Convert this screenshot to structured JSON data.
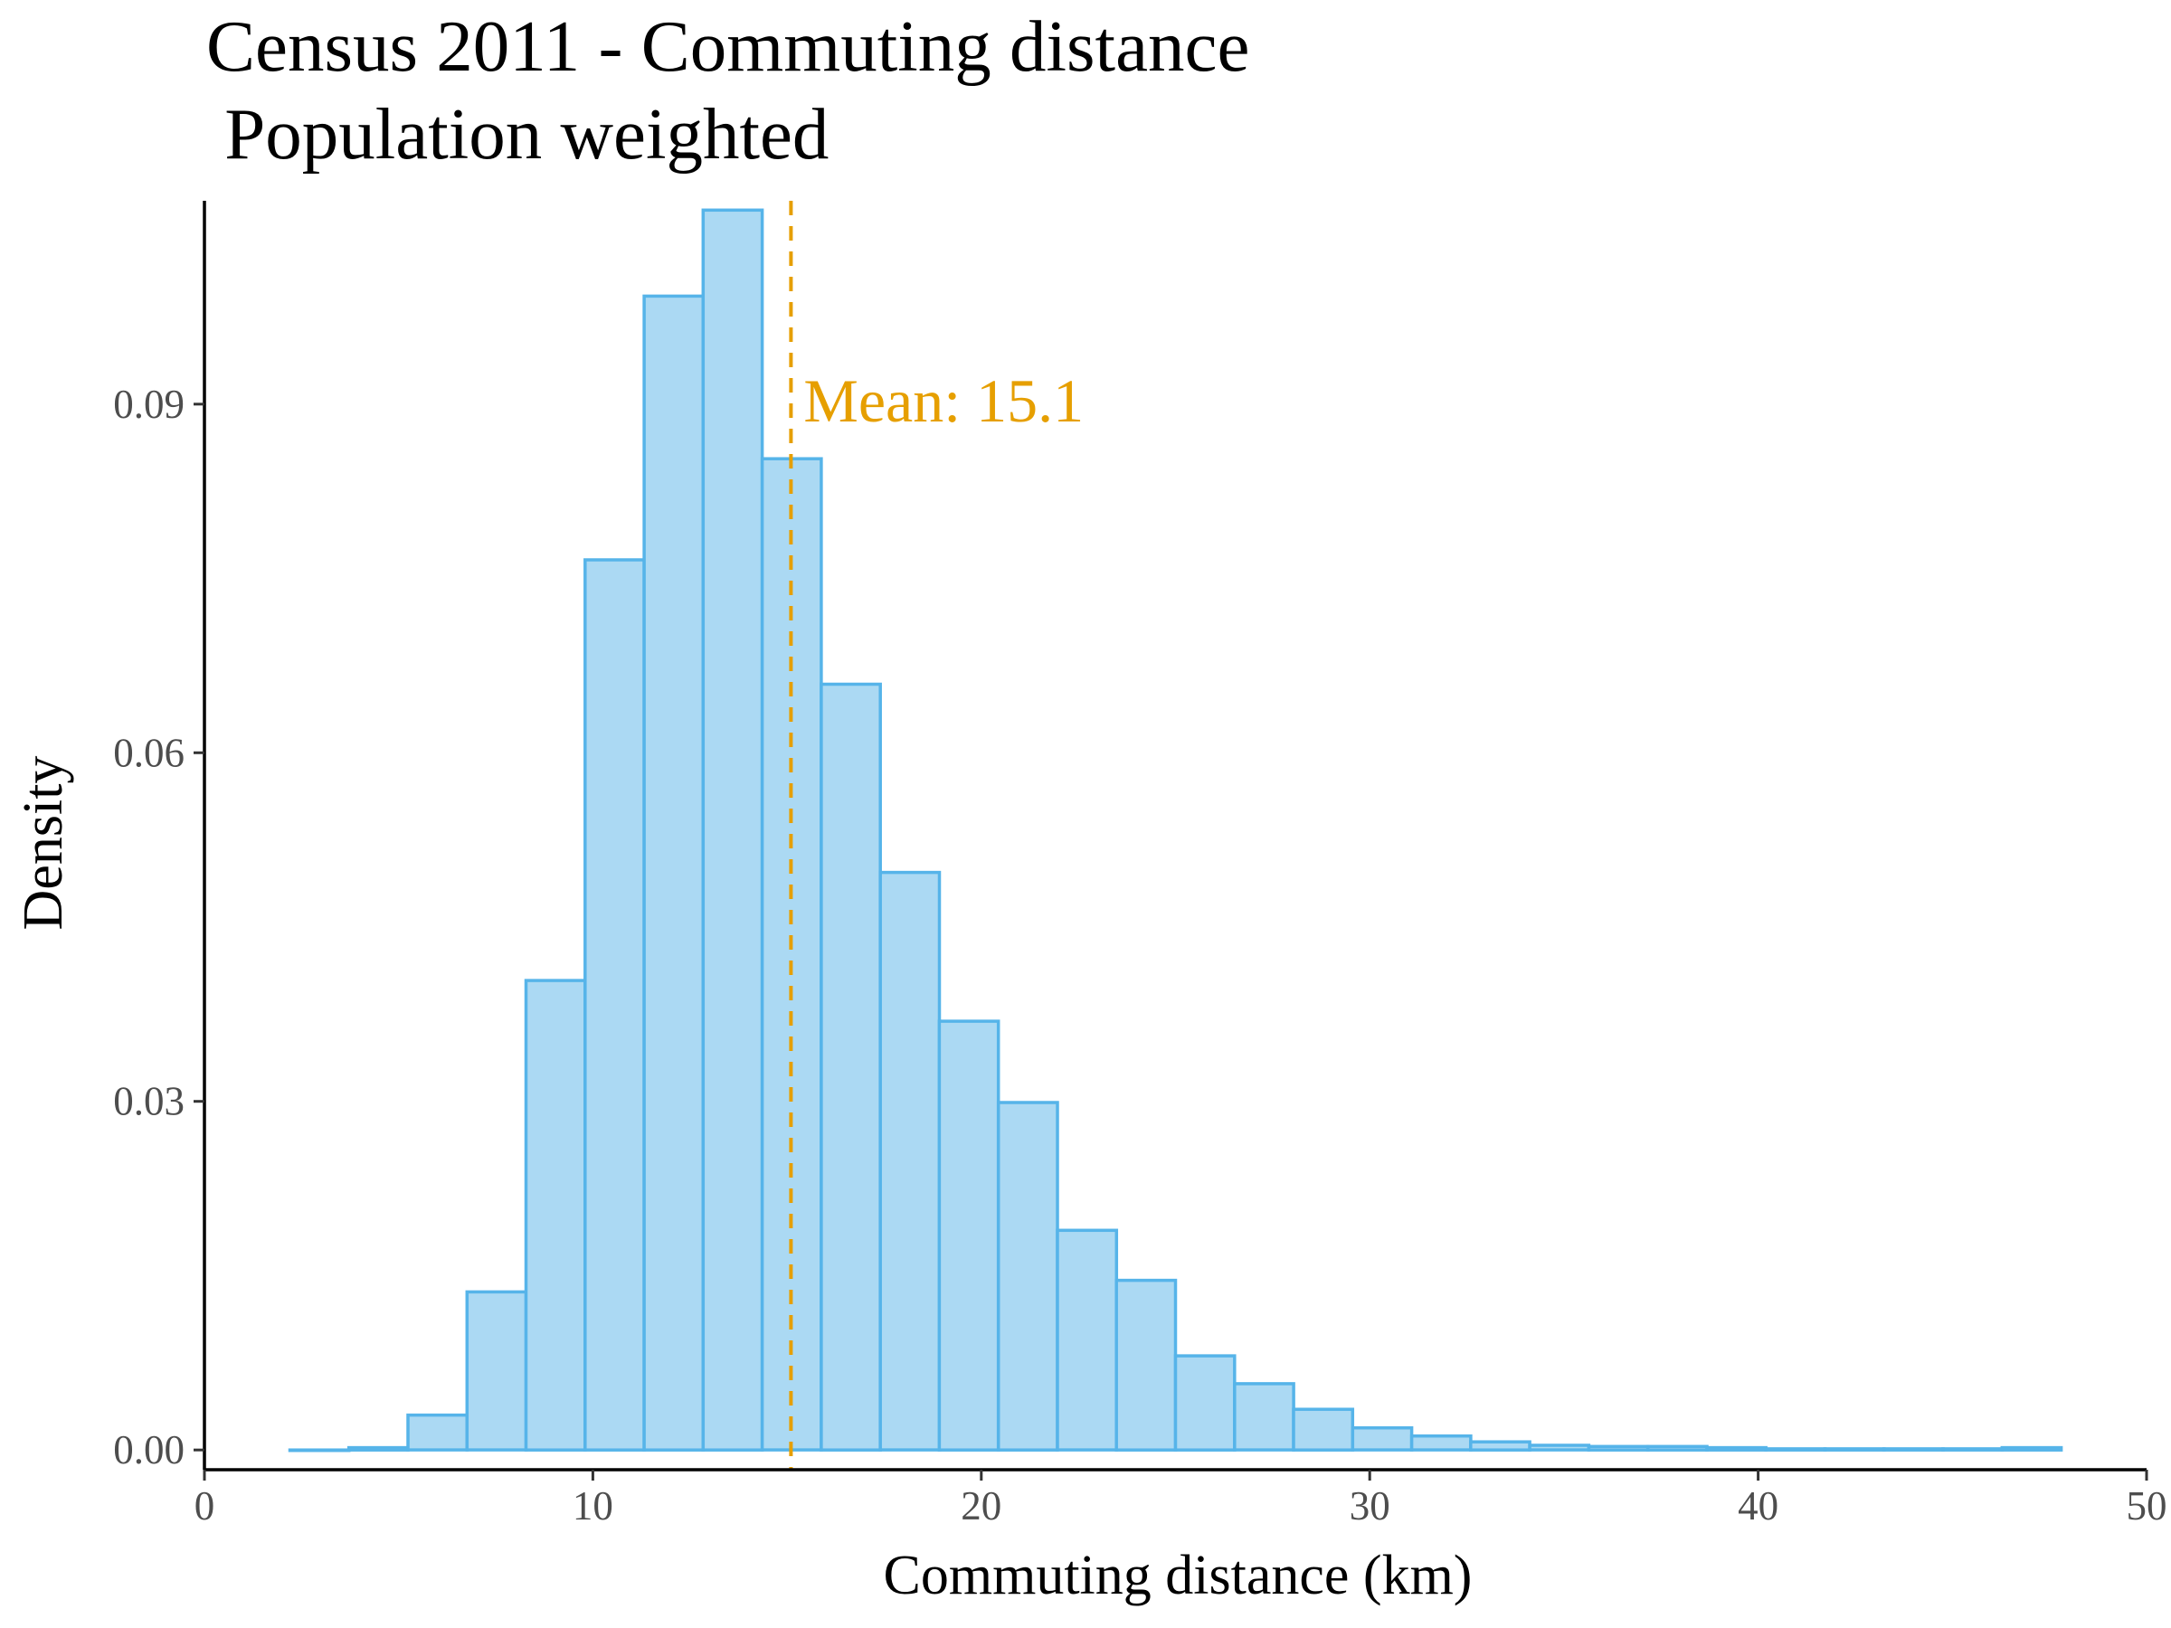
{
  "chart_data": {
    "type": "bar",
    "title_lines": [
      "Census 2011 - Commuting distance",
      " Population weighted"
    ],
    "xlabel": "Commuting distance (km)",
    "ylabel": "Density",
    "xlim": [
      0,
      50
    ],
    "ylim": [
      -0.0017,
      0.1075
    ],
    "x_ticks": [
      0,
      10,
      20,
      30,
      40,
      50
    ],
    "x_tick_labels": [
      "0",
      "10",
      "20",
      "30",
      "40",
      "50"
    ],
    "y_ticks": [
      0,
      0.03,
      0.06,
      0.09
    ],
    "y_tick_labels": [
      "0.00",
      "0.03",
      "0.06",
      "0.09"
    ],
    "grid": false,
    "bin_start": 2.2,
    "bin_width": 1.52,
    "values": [
      0.0,
      0.0002,
      0.003,
      0.0136,
      0.0404,
      0.0766,
      0.0993,
      0.1067,
      0.0853,
      0.0659,
      0.0497,
      0.0369,
      0.0299,
      0.0189,
      0.0146,
      0.0081,
      0.0057,
      0.0035,
      0.0019,
      0.0012,
      0.0007,
      0.0004,
      0.0003,
      0.0003,
      0.0002,
      0.0001,
      0.0001,
      0.0001,
      0.0001,
      0.0002
    ],
    "mean": {
      "value": 15.1,
      "label": "Mean: 15.1"
    },
    "colors": {
      "fill": "#ABD9F3",
      "stroke": "#56B4E9",
      "mean": "#E69F00"
    }
  }
}
